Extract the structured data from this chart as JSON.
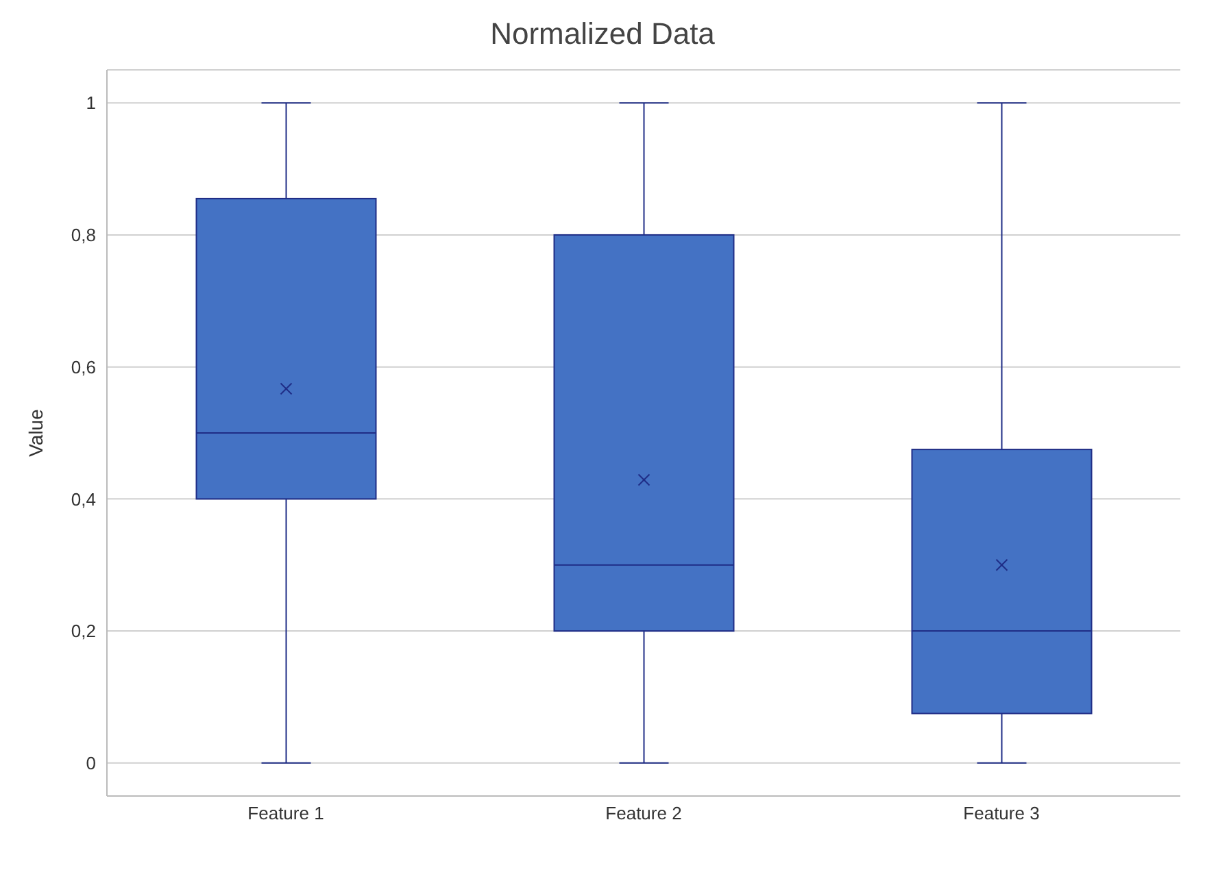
{
  "chart_data": {
    "type": "box",
    "title": "Normalized Data",
    "ylabel": "Value",
    "categories": [
      "Feature 1",
      "Feature 2",
      "Feature  3"
    ],
    "color": "#4472c4",
    "boxes": [
      {
        "low": 0,
        "q1": 0.4,
        "median": 0.5,
        "q3": 0.855,
        "high": 1,
        "mean": 0.567
      },
      {
        "low": 0,
        "q1": 0.2,
        "median": 0.3,
        "q3": 0.8,
        "high": 1,
        "mean": 0.429
      },
      {
        "low": 0,
        "q1": 0.075,
        "median": 0.2,
        "q3": 0.475,
        "high": 1,
        "mean": 0.3
      }
    ],
    "ylim": [
      -0.05,
      1.05
    ],
    "yticks": [
      {
        "value": 0,
        "label": "0"
      },
      {
        "value": 0.2,
        "label": "0,2"
      },
      {
        "value": 0.4,
        "label": "0,4"
      },
      {
        "value": 0.6,
        "label": "0,6"
      },
      {
        "value": 0.8,
        "label": "0,8"
      },
      {
        "value": 1,
        "label": "1"
      }
    ],
    "grid": "y"
  }
}
